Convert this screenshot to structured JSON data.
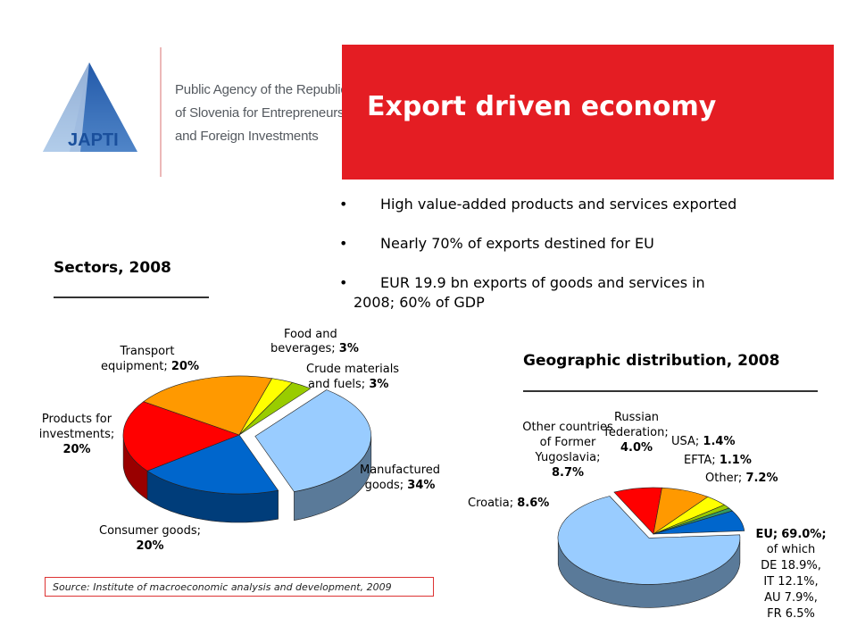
{
  "agency": {
    "logo_text": "JAPTI",
    "name_lines": [
      "Public Agency of the Republic",
      "of Slovenia for Entrepreneurship",
      "and Foreign Investments"
    ]
  },
  "title": "Export driven economy",
  "bullets": [
    {
      "text": "High value-added products and services exported",
      "cont": ""
    },
    {
      "text": "Nearly 70% of exports destined for EU",
      "cont": ""
    },
    {
      "text": "EUR 19.9 bn exports of goods and services in",
      "cont": "2008; 60% of GDP"
    }
  ],
  "source": "Source: Institute of macroeconomic analysis and development, 2009",
  "chart_data": [
    {
      "type": "pie",
      "title": "Sectors, 2008",
      "unit": "%",
      "slices": [
        {
          "label": "Manufactured goods;",
          "value": 34,
          "value_text": "34%",
          "color": "#99ccff",
          "side": "#5a7a99"
        },
        {
          "label": "Consumer goods;",
          "value": 20,
          "value_text": "20%",
          "color": "#0066cc",
          "side": "#003d7a"
        },
        {
          "label": "Products for investments;",
          "value": 20,
          "value_text": "20%",
          "color": "#ff0000",
          "side": "#990000"
        },
        {
          "label": "Transport equipment;",
          "value": 20,
          "value_text": "20%",
          "color": "#ff9900",
          "side": "#995c00"
        },
        {
          "label": "Food and beverages;",
          "value": 3,
          "value_text": "3%",
          "color": "#ffff00",
          "side": "#999900"
        },
        {
          "label": "Crude materials and fuels;",
          "value": 3,
          "value_text": "3%",
          "color": "#99cc00",
          "side": "#5c7a00"
        }
      ]
    },
    {
      "type": "pie",
      "title": "Geographic distribution, 2008",
      "unit": "%",
      "slices": [
        {
          "label": "EU;",
          "value": 69.0,
          "value_text": "69.0%;",
          "color": "#99ccff",
          "side": "#5a7a99",
          "note_lines": [
            "of which",
            "DE 18.9%,",
            "IT 12.1%,",
            "AU 7.9%,",
            "FR 6.5%"
          ]
        },
        {
          "label": "Croatia;",
          "value": 8.6,
          "value_text": "8.6%",
          "color": "#ff0000",
          "side": "#990000"
        },
        {
          "label": "Other countries of Former Yugoslavia;",
          "value": 8.7,
          "value_text": "8.7%",
          "color": "#ff9900",
          "side": "#995c00"
        },
        {
          "label": "Russian federation;",
          "value": 4.0,
          "value_text": "4.0%",
          "color": "#ffff00",
          "side": "#999900"
        },
        {
          "label": "USA;",
          "value": 1.4,
          "value_text": "1.4%",
          "color": "#99cc00",
          "side": "#5c7a00"
        },
        {
          "label": "EFTA;",
          "value": 1.1,
          "value_text": "1.1%",
          "color": "#339966",
          "side": "#1f5c3d"
        },
        {
          "label": "Other;",
          "value": 7.2,
          "value_text": "7.2%",
          "color": "#0066cc",
          "side": "#003d7a"
        }
      ]
    }
  ]
}
